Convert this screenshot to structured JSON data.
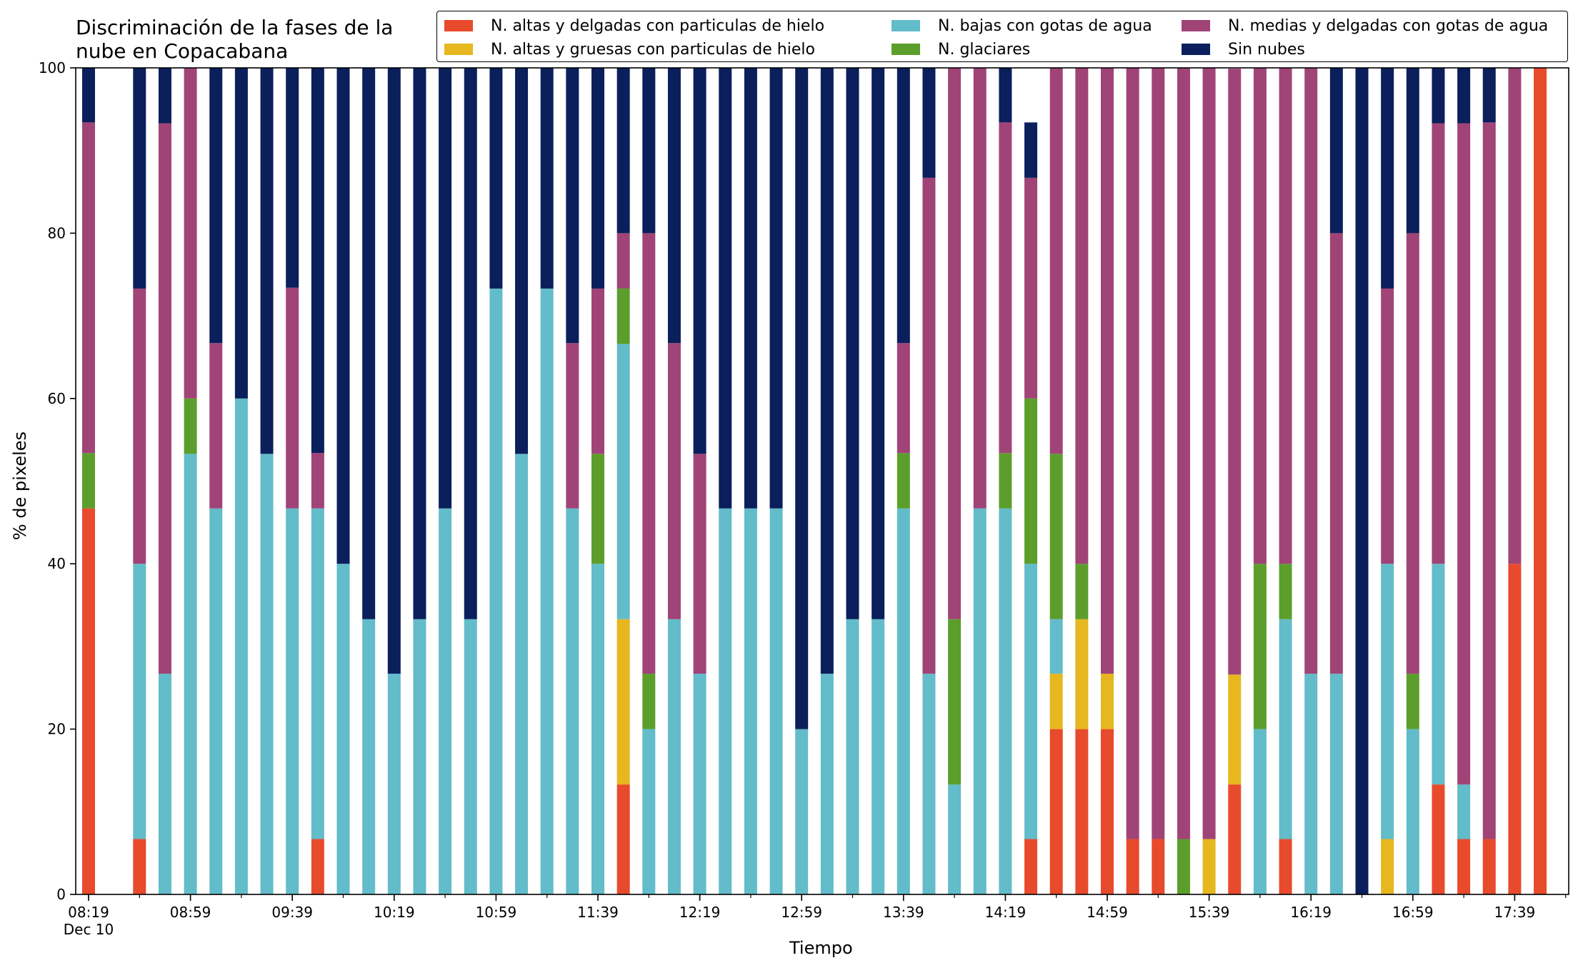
{
  "chart_data": {
    "type": "bar",
    "stacked": true,
    "title": "Discriminación de la fases de la\nnube en Copacabana",
    "xlabel": "Tiempo",
    "ylabel": "% de pixeles",
    "ylim": [
      0,
      100
    ],
    "yticks": [
      0,
      20,
      40,
      60,
      80,
      100
    ],
    "grid": false,
    "legend_position": "top-right",
    "x_interval_minutes": 10,
    "categories": [
      "08:19",
      "08:29",
      "08:39",
      "08:49",
      "08:59",
      "09:09",
      "09:19",
      "09:29",
      "09:39",
      "09:49",
      "09:59",
      "10:09",
      "10:19",
      "10:29",
      "10:39",
      "10:49",
      "10:59",
      "11:09",
      "11:19",
      "11:29",
      "11:39",
      "11:49",
      "11:59",
      "12:09",
      "12:19",
      "12:29",
      "12:39",
      "12:49",
      "12:59",
      "13:09",
      "13:19",
      "13:29",
      "13:39",
      "13:49",
      "13:59",
      "14:09",
      "14:19",
      "14:29",
      "14:39",
      "14:49",
      "14:59",
      "15:09",
      "15:19",
      "15:29",
      "15:39",
      "15:49",
      "15:59",
      "16:09",
      "16:19",
      "16:29",
      "16:39",
      "16:49",
      "16:59",
      "17:09",
      "17:19",
      "17:29",
      "17:39",
      "17:49"
    ],
    "xtick_labels": [
      {
        "time": "08:19",
        "label": "08:19",
        "sub": "Dec 10"
      },
      {
        "time": "08:59",
        "label": "08:59"
      },
      {
        "time": "09:39",
        "label": "09:39"
      },
      {
        "time": "10:19",
        "label": "10:19"
      },
      {
        "time": "10:59",
        "label": "10:59"
      },
      {
        "time": "11:39",
        "label": "11:39"
      },
      {
        "time": "12:19",
        "label": "12:19"
      },
      {
        "time": "12:59",
        "label": "12:59"
      },
      {
        "time": "13:39",
        "label": "13:39"
      },
      {
        "time": "14:19",
        "label": "14:19"
      },
      {
        "time": "14:59",
        "label": "14:59"
      },
      {
        "time": "15:39",
        "label": "15:39"
      },
      {
        "time": "16:19",
        "label": "16:19"
      },
      {
        "time": "16:59",
        "label": "16:59"
      },
      {
        "time": "17:39",
        "label": "17:39"
      }
    ],
    "missing": [
      "08:29"
    ],
    "series": [
      {
        "name": "N. altas y delgadas con particulas de hielo",
        "color": "#e84a2c",
        "values": [
          46.7,
          null,
          6.7,
          0,
          0,
          0,
          0,
          0,
          0,
          6.7,
          0,
          0,
          0,
          0,
          0,
          0,
          0,
          0,
          0,
          0,
          0,
          13.3,
          0,
          0,
          0,
          0,
          0,
          0,
          0,
          0,
          0,
          0,
          0,
          0,
          0,
          0,
          0,
          6.7,
          20,
          20,
          20,
          6.7,
          6.7,
          0,
          0,
          13.3,
          0,
          6.7,
          0,
          0,
          0,
          0,
          0,
          13.3,
          6.7,
          6.7,
          40,
          100
        ]
      },
      {
        "name": "N. altas y gruesas con particulas de hielo",
        "color": "#e6b71e",
        "values": [
          0,
          null,
          0,
          0,
          0,
          0,
          0,
          0,
          0,
          0,
          0,
          0,
          0,
          0,
          0,
          0,
          0,
          0,
          0,
          0,
          0,
          20,
          0,
          0,
          0,
          0,
          0,
          0,
          0,
          0,
          0,
          0,
          0,
          0,
          0,
          0,
          0,
          0,
          6.7,
          13.3,
          6.7,
          0,
          0,
          0,
          6.7,
          13.3,
          0,
          0,
          0,
          0,
          0,
          6.7,
          0,
          0,
          0,
          0,
          0,
          0
        ]
      },
      {
        "name": "N. bajas con gotas de agua",
        "color": "#63bcc9",
        "values": [
          0,
          null,
          33.3,
          26.7,
          53.3,
          46.7,
          60,
          53.3,
          46.7,
          40,
          40,
          33.3,
          26.7,
          33.3,
          46.7,
          33.3,
          73.3,
          53.3,
          73.3,
          46.7,
          40,
          33.3,
          20,
          33.3,
          26.7,
          46.7,
          46.7,
          46.7,
          20,
          26.7,
          33.3,
          33.3,
          46.7,
          26.7,
          13.3,
          46.7,
          46.7,
          33.3,
          6.6,
          0,
          0,
          0,
          0,
          0,
          0,
          0,
          20,
          26.6,
          26.7,
          26.7,
          0,
          33.3,
          20,
          26.7,
          6.6,
          0,
          0,
          0
        ]
      },
      {
        "name": "N. glaciares",
        "color": "#5c9e2c",
        "values": [
          6.7,
          null,
          0,
          0,
          6.7,
          0,
          0,
          0,
          0,
          0,
          0,
          0,
          0,
          0,
          0,
          0,
          0,
          0,
          0,
          0,
          13.3,
          6.7,
          6.7,
          0,
          0,
          0,
          0,
          0,
          0,
          0,
          0,
          0,
          6.7,
          0,
          20,
          0,
          6.7,
          20,
          20,
          6.7,
          0,
          0,
          0,
          6.7,
          0,
          0,
          20,
          6.7,
          0,
          0,
          0,
          0,
          6.7,
          0,
          0,
          0,
          0,
          0
        ]
      },
      {
        "name": "N. medias y delgadas con gotas de agua",
        "color": "#a04478",
        "values": [
          40,
          null,
          33.3,
          66.6,
          40,
          20,
          0,
          0,
          26.7,
          6.7,
          0,
          0,
          0,
          0,
          0,
          0,
          0,
          0,
          0,
          20,
          20,
          6.7,
          53.3,
          33.4,
          26.6,
          0,
          0,
          0,
          0,
          0,
          0,
          0,
          13.3,
          60,
          66.7,
          53.3,
          40,
          26.7,
          46.7,
          60,
          73.3,
          93.3,
          93.3,
          93.3,
          93.3,
          73.3,
          60,
          60,
          73.3,
          53.3,
          0,
          33.3,
          53.3,
          53.3,
          80,
          86.7,
          60,
          0
        ]
      },
      {
        "name": "Sin nubes",
        "color": "#0a1f5c",
        "values": [
          6.6,
          null,
          26.7,
          6.7,
          0,
          33.3,
          40,
          46.7,
          26.6,
          46.6,
          60,
          66.7,
          73.3,
          66.7,
          53.3,
          66.7,
          26.7,
          46.7,
          26.7,
          33.3,
          26.7,
          20,
          20,
          33.3,
          46.7,
          53.3,
          53.3,
          53.3,
          80,
          73.3,
          66.7,
          66.7,
          33.3,
          13.3,
          0,
          0,
          13.3,
          6.7,
          0,
          0,
          0,
          0,
          0,
          0,
          0,
          0,
          0,
          0,
          0,
          20,
          100,
          26.7,
          20,
          6.7,
          6.7,
          6.7,
          0,
          0
        ]
      }
    ]
  },
  "legend": [
    {
      "label": "N. altas y delgadas con particulas de hielo",
      "color": "#e84a2c"
    },
    {
      "label": "N. altas y gruesas con particulas de hielo",
      "color": "#e6b71e"
    },
    {
      "label": "N. bajas con gotas de agua",
      "color": "#63bcc9"
    },
    {
      "label": "N. glaciares",
      "color": "#5c9e2c"
    },
    {
      "label": "N. medias y delgadas con gotas de agua",
      "color": "#a04478"
    },
    {
      "label": "Sin nubes",
      "color": "#0a1f5c"
    }
  ]
}
